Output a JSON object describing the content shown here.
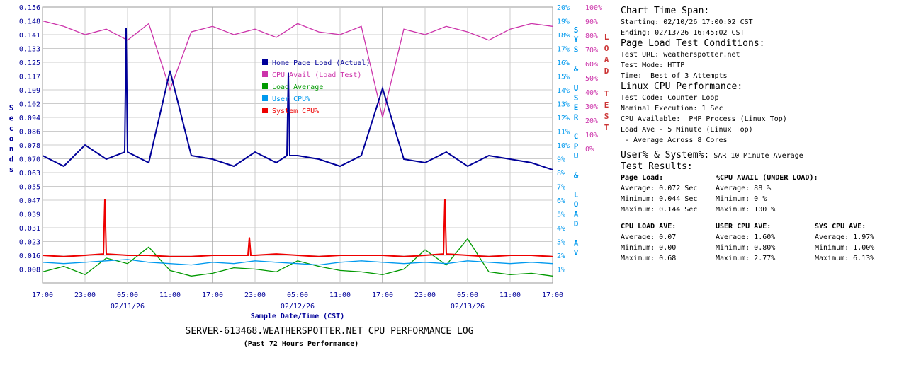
{
  "chart_data": {
    "type": "line",
    "title": "SERVER-613468.WEATHERSPOTTER.NET CPU PERFORMANCE LOG",
    "subtitle": "(Past 72 Hours Performance)",
    "xlabel": "Sample Date/Time (CST)",
    "x_ticks": [
      "17:00",
      "23:00",
      "05:00",
      "11:00",
      "17:00",
      "23:00",
      "05:00",
      "11:00",
      "17:00",
      "23:00",
      "05:00",
      "11:00",
      "17:00"
    ],
    "x_dates": [
      {
        "label": "02/11/26",
        "tick": 2
      },
      {
        "label": "02/12/26",
        "tick": 6
      },
      {
        "label": "02/13/26",
        "tick": 10
      }
    ],
    "y_left": {
      "label": "Seconds",
      "ticks": [
        "0.156",
        "0.148",
        "0.141",
        "0.133",
        "0.125",
        "0.117",
        "0.109",
        "0.102",
        "0.094",
        "0.086",
        "0.078",
        "0.070",
        "0.063",
        "0.055",
        "0.047",
        "0.039",
        "0.031",
        "0.023",
        "0.016",
        "0.008"
      ],
      "range": [
        0,
        0.156
      ]
    },
    "y_right1": {
      "label": "SYS & USER CPU & LOAD AV",
      "ticks": [
        "20%",
        "19%",
        "18%",
        "17%",
        "16%",
        "15%",
        "14%",
        "13%",
        "12%",
        "11%",
        "10%",
        "9%",
        "8%",
        "7%",
        "6%",
        "5%",
        "4%",
        "3%",
        "2%",
        "1%"
      ],
      "range": [
        0,
        20
      ]
    },
    "y_right2": {
      "label": "LOAD TEST",
      "ticks": [
        "100%",
        "90%",
        "80%",
        "70%",
        "60%",
        "50%",
        "40%",
        "30%",
        "20%",
        "10%",
        "0%"
      ],
      "range": [
        0,
        100
      ]
    },
    "legend": [
      {
        "name": "Home Page Load (Actual)",
        "color": "#000099"
      },
      {
        "name": "CPU Avail (Load Test)",
        "color": "#cc33aa"
      },
      {
        "name": "Load Average",
        "color": "#009900"
      },
      {
        "name": "User CPU%",
        "color": "#0099ee"
      },
      {
        "name": "System CPU%",
        "color": "#ee0000"
      }
    ],
    "legend_position": "top-center",
    "grid": true,
    "series": [
      {
        "name": "Home Page Load (Actual)",
        "axis": "seconds",
        "x": [
          0,
          3,
          6,
          9,
          12,
          15,
          18,
          21,
          24,
          27,
          30,
          33,
          36,
          39,
          42,
          45,
          48,
          51,
          54,
          57,
          60,
          63,
          66,
          69,
          72
        ],
        "values": [
          0.072,
          0.066,
          0.078,
          0.07,
          0.074,
          0.068,
          0.12,
          0.072,
          0.07,
          0.066,
          0.074,
          0.068,
          0.072,
          0.07,
          0.066,
          0.072,
          0.11,
          0.07,
          0.068,
          0.074,
          0.066,
          0.072,
          0.07,
          0.068,
          0.064
        ]
      },
      {
        "name": "CPU Avail (Load Test)",
        "axis": "load-test",
        "x": [
          0,
          3,
          6,
          9,
          12,
          15,
          18,
          21,
          24,
          27,
          30,
          33,
          36,
          39,
          42,
          45,
          48,
          51,
          54,
          57,
          60,
          63,
          66,
          69,
          72
        ],
        "values": [
          95,
          93,
          90,
          92,
          88,
          94,
          70,
          91,
          93,
          90,
          92,
          89,
          94,
          91,
          90,
          93,
          60,
          92,
          90,
          93,
          91,
          88,
          92,
          94,
          93
        ]
      },
      {
        "name": "Load Average",
        "axis": "cpu",
        "x": [
          0,
          3,
          6,
          9,
          12,
          15,
          18,
          21,
          24,
          27,
          30,
          33,
          36,
          39,
          42,
          45,
          48,
          51,
          54,
          57,
          60,
          63,
          66,
          69,
          72
        ],
        "values": [
          0.8,
          1.2,
          0.6,
          1.8,
          1.4,
          2.6,
          0.9,
          0.5,
          0.7,
          1.1,
          1.0,
          0.8,
          1.6,
          1.2,
          0.9,
          0.8,
          0.6,
          1.0,
          2.4,
          1.3,
          3.2,
          0.8,
          0.6,
          0.7,
          0.5
        ]
      },
      {
        "name": "User CPU%",
        "axis": "cpu",
        "x": [
          0,
          3,
          6,
          9,
          12,
          15,
          18,
          21,
          24,
          27,
          30,
          33,
          36,
          39,
          42,
          45,
          48,
          51,
          54,
          57,
          60,
          63,
          66,
          69,
          72
        ],
        "values": [
          1.5,
          1.4,
          1.5,
          1.6,
          1.7,
          1.5,
          1.4,
          1.3,
          1.5,
          1.4,
          1.6,
          1.5,
          1.4,
          1.3,
          1.5,
          1.6,
          1.5,
          1.4,
          1.5,
          1.4,
          1.6,
          1.5,
          1.4,
          1.5,
          1.4
        ]
      },
      {
        "name": "System CPU%",
        "axis": "cpu",
        "x": [
          0,
          3,
          6,
          9,
          12,
          15,
          18,
          21,
          24,
          27,
          30,
          33,
          36,
          39,
          42,
          45,
          48,
          51,
          54,
          57,
          60,
          63,
          66,
          69,
          72
        ],
        "values": [
          2.0,
          1.9,
          2.0,
          2.1,
          2.0,
          2.0,
          1.9,
          1.9,
          2.0,
          2.0,
          2.0,
          2.1,
          2.0,
          1.9,
          2.0,
          2.0,
          2.0,
          1.9,
          2.0,
          2.1,
          2.0,
          1.9,
          2.0,
          2.0,
          1.9
        ]
      }
    ],
    "spikes": [
      {
        "series": "System CPU%",
        "x": 8.8,
        "value": 6.1
      },
      {
        "series": "System CPU%",
        "x": 29.2,
        "value": 3.3
      },
      {
        "series": "System CPU%",
        "x": 56.8,
        "value": 6.1
      },
      {
        "series": "Home Page Load (Actual)",
        "x": 11.8,
        "value": 0.144
      },
      {
        "series": "Home Page Load (Actual)",
        "x": 34.7,
        "value": 0.119
      }
    ]
  },
  "panel": {
    "span_heading": "Chart Time Span:",
    "span_start": "Starting: 02/10/26 17:00:02 CST",
    "span_end": "Ending: 02/13/26 16:45:02 CST",
    "cond_heading": "Page Load Test Conditions:",
    "cond_url": "Test URL: weatherspotter.net",
    "cond_mode": "Test Mode: HTTP",
    "cond_time": "Time:  Best of 3 Attempts",
    "cpu_heading": "Linux CPU Performance:",
    "cpu_code": "Test Code: Counter Loop",
    "cpu_exec": "Nominal Execution: 1 Sec",
    "cpu_avail": "CPU Available:  PHP Process (Linux Top)",
    "cpu_load": "Load Ave - 5 Minute (Linux Top)",
    "cpu_cores": " - Average Across 8 Cores",
    "usersys_heading": "User% & System%:",
    "usersys_note": "SAR 10 Minute Average",
    "results_heading": "Test Results:",
    "pl_head": "Page Load:",
    "pl_avg": "Average: 0.072 Sec",
    "pl_min": "Minimum: 0.044 Sec",
    "pl_max": "Maximum: 0.144 Sec",
    "ca_head": "%CPU AVAIL (UNDER LOAD):",
    "ca_avg": "Average: 88 %",
    "ca_min": "Minimum: 0 %",
    "ca_max": "Maximum: 100 %",
    "la_head": "CPU LOAD AVE:",
    "la_avg": "Average: 0.07",
    "la_min": "Minimum: 0.00",
    "la_max": "Maximum: 0.68",
    "uc_head": "USER CPU AVE:",
    "uc_avg": "Average: 1.60%",
    "uc_min": "Minimum: 0.80%",
    "uc_max": "Maximum: 2.77%",
    "sc_head": "SYS CPU AVE:",
    "sc_avg": "Average: 1.97%",
    "sc_min": "Minimum: 1.00%",
    "sc_max": "Maximum: 6.13%"
  }
}
